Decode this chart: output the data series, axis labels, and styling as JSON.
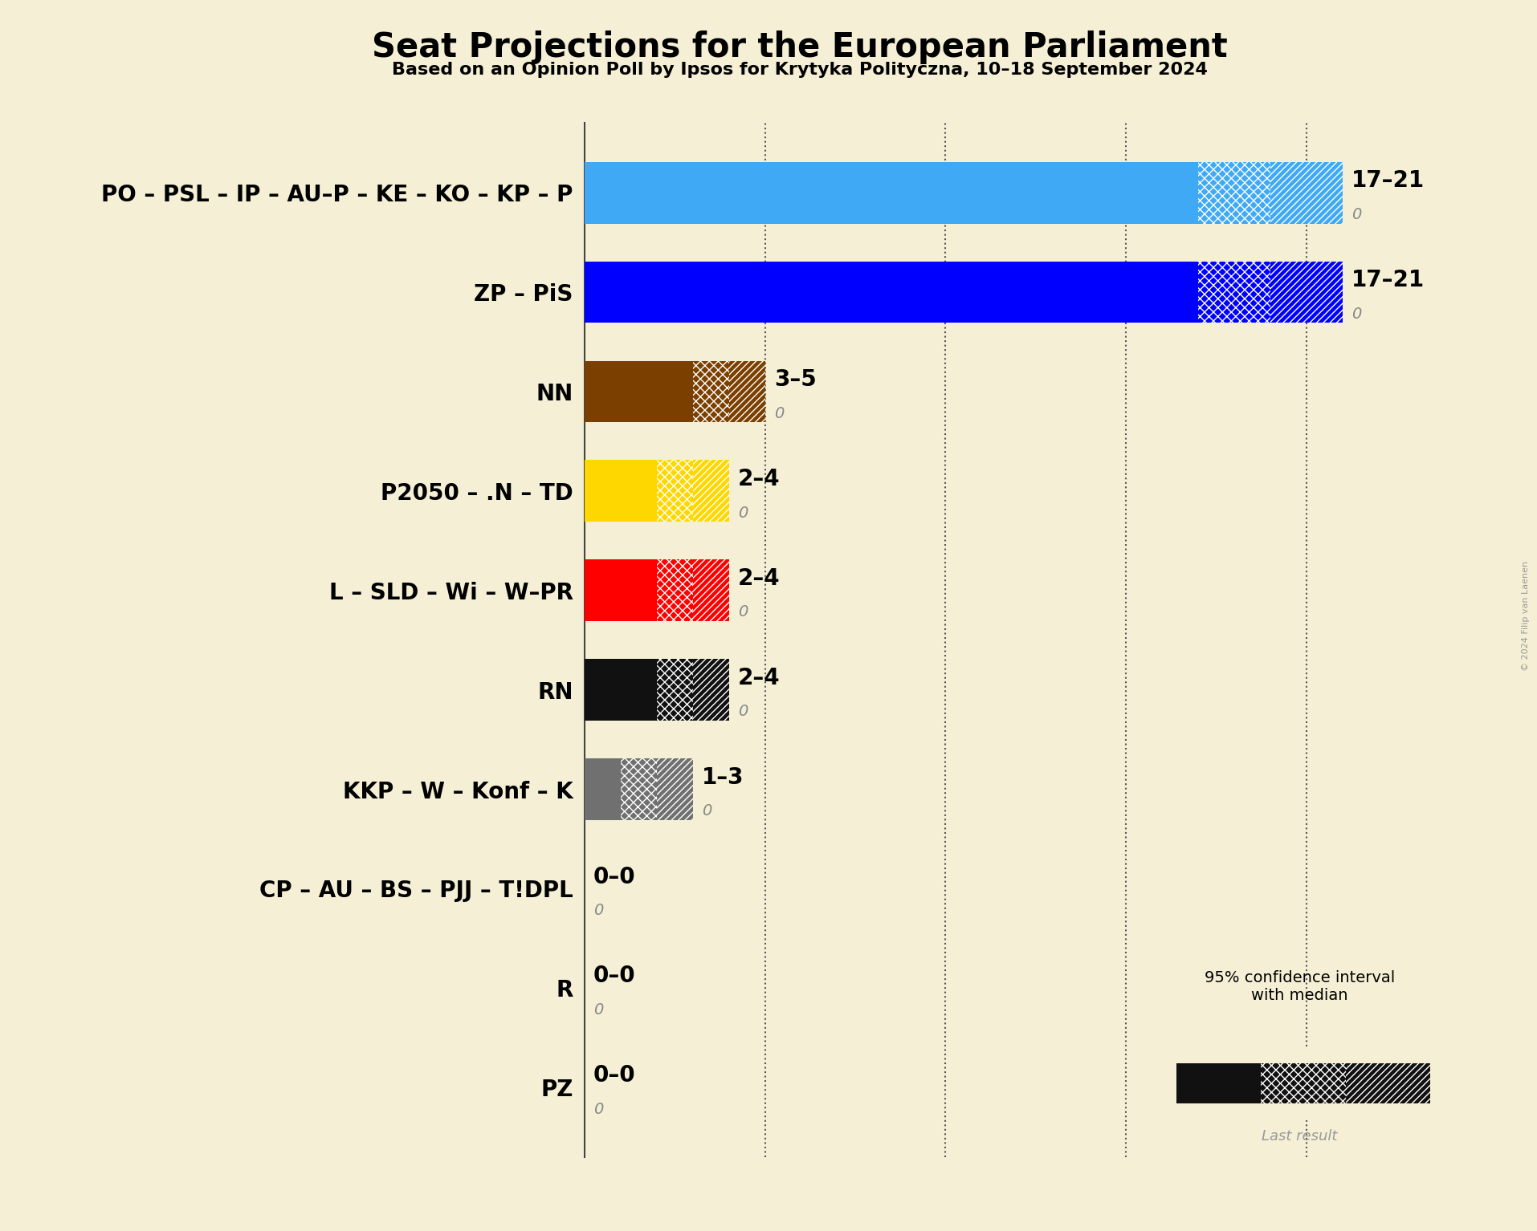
{
  "title": "Seat Projections for the European Parliament",
  "subtitle": "Based on an Opinion Poll by Ipsos for Krytyka Polityczna, 10–18 September 2024",
  "copyright": "© 2024 Filip van Laenen",
  "background_color": "#f5f0d5",
  "parties": [
    "PO – PSL – IP – AU–P – KE – KO – KP – P",
    "ZP – PiS",
    "NN",
    "P2050 – .N – TD",
    "L – SLD – Wi – W–PR",
    "RN",
    "KKP – W – Konf – K",
    "CP – AU – BS – PJJ – T!DPL",
    "R",
    "PZ"
  ],
  "colors": [
    "#3fa9f5",
    "#0000ff",
    "#7b3f00",
    "#ffd700",
    "#ff0000",
    "#111111",
    "#707070",
    "#aaaaaa",
    "#aaaaaa",
    "#aaaaaa"
  ],
  "low": [
    17,
    17,
    3,
    2,
    2,
    2,
    1,
    0,
    0,
    0
  ],
  "median": [
    19,
    19,
    4,
    3,
    3,
    3,
    2,
    0,
    0,
    0
  ],
  "high": [
    21,
    21,
    5,
    4,
    4,
    4,
    3,
    0,
    0,
    0
  ],
  "range_labels": [
    "17–21",
    "17–21",
    "3–5",
    "2–4",
    "2–4",
    "2–4",
    "1–3",
    "0–0",
    "0–0",
    "0–0"
  ],
  "xlim": [
    0,
    23
  ],
  "dotted_lines": [
    5,
    10,
    15,
    20
  ],
  "bar_height": 0.62,
  "title_fontsize": 30,
  "subtitle_fontsize": 16,
  "label_fontsize": 20,
  "range_fontsize": 20,
  "zero_fontsize": 14
}
